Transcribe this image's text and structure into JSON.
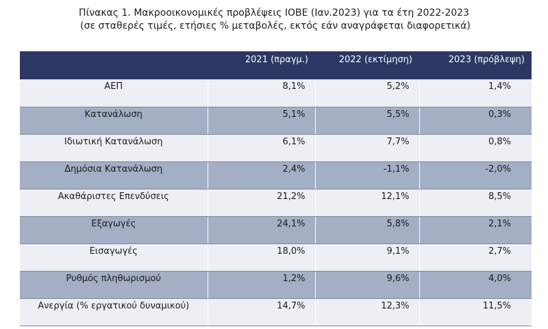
{
  "title": {
    "line1": "Πίνακας 1. Μακροοικονομικές προβλέψεις ΙΟΒΕ (Ιαν.2023) για τα έτη 2022-2023",
    "line2": "(σε σταθερές τιμές, ετήσιες % μεταβολές, εκτός εάν αναγράφεται διαφορετικά)"
  },
  "colors": {
    "header_bg": "#2b3863",
    "row_light": "#edeff4",
    "row_dark": "#a4afc6"
  },
  "table": {
    "headers": [
      "",
      "2021 (πραγμ.)",
      "2022 (εκτίμηση)",
      "2023 (πρόβλεψη)"
    ],
    "rows": [
      {
        "label": "ΑΕΠ",
        "values": [
          "8,1%",
          "5,2%",
          "1,4%"
        ]
      },
      {
        "label": "Κατανάλωση",
        "values": [
          "5,1%",
          "5,5%",
          "0,3%"
        ]
      },
      {
        "label": "Ιδιωτική Κατανάλωση",
        "values": [
          "6,1%",
          "7,7%",
          "0,8%"
        ]
      },
      {
        "label": "Δημόσια Κατανάλωση",
        "values": [
          "2,4%",
          "-1,1%",
          "-2,0%"
        ]
      },
      {
        "label": "Ακαθάριστες Επενδύσεις",
        "values": [
          "21,2%",
          "12,1%",
          "8,5%"
        ]
      },
      {
        "label": "Εξαγωγές",
        "values": [
          "24,1%",
          "5,8%",
          "2,1%"
        ]
      },
      {
        "label": "Εισαγωγές",
        "values": [
          "18,0%",
          "9,1%",
          "2,7%"
        ]
      },
      {
        "label": "Ρυθμός πληθωρισμού",
        "values": [
          "1,2%",
          "9,6%",
          "4,0%"
        ]
      },
      {
        "label": "Ανεργία (% εργατικού δυναμικού)",
        "values": [
          "14,7%",
          "12,3%",
          "11,5%"
        ]
      }
    ]
  }
}
